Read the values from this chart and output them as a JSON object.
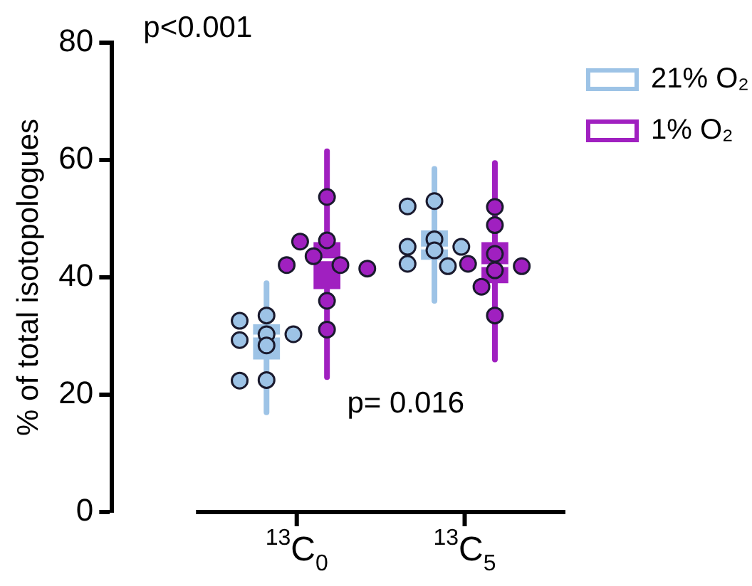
{
  "chart_data": {
    "type": "box",
    "ylabel": "% of total isotopologues",
    "categories": [
      "$^{13}$C$_{0}$",
      "$^{13}$C$_{5}$"
    ],
    "ylim": [
      0,
      80
    ],
    "yticks": [
      0,
      20,
      40,
      60,
      80
    ],
    "grid": false,
    "legend": "top right",
    "annotations": [
      "p<0.001",
      "p= 0.016"
    ],
    "series": [
      {
        "name": "21% O₂",
        "color": "#9dc3e6",
        "boxes": [
          {
            "low": 17,
            "q1": 26,
            "median": 30,
            "q3": 32,
            "high": 39
          },
          {
            "low": 36,
            "q1": 43,
            "median": 45,
            "q3": 48,
            "high": 58.5
          }
        ]
      },
      {
        "name": "1% O₂",
        "color": "#a020c0",
        "boxes": [
          {
            "low": 23,
            "q1": 38,
            "median": 43,
            "q3": 46,
            "high": 61.5
          },
          {
            "low": 26,
            "q1": 39,
            "median": 42,
            "q3": 46,
            "high": 59.5
          }
        ]
      },
      {
        "type": "scatter",
        "color": "#9dc3e6",
        "marker": "circle",
        "x": [
          "$^{13}$C$_{0}$",
          "$^{13}$C$_{0}$",
          "$^{13}$C$_{0}$",
          "$^{13}$C$_{0}$",
          "$^{13}$C$_{0}$",
          "$^{13}$C$_{0}$",
          "$^{13}$C$_{0}$",
          "$^{13}$C$_{0}$",
          "$^{13}$C$_{5}$",
          "$^{13}$C$_{5}$",
          "$^{13}$C$_{5}$",
          "$^{13}$C$_{5}$",
          "$^{13}$C$_{5}$",
          "$^{13}$C$_{5}$",
          "$^{13}$C$_{5}$",
          "$^{13}$C$_{5}$"
        ],
        "values": [
          33.5,
          32.6,
          30.3,
          30.3,
          29.3,
          28.4,
          22.5,
          22.4,
          53,
          52.1,
          46.5,
          45.2,
          45.2,
          44.6,
          42.3,
          41.9
        ]
      },
      {
        "type": "scatter",
        "color": "#a020c0",
        "marker": "circle",
        "x": [
          "$^{13}$C$_{0}$",
          "$^{13}$C$_{0}$",
          "$^{13}$C$_{0}$",
          "$^{13}$C$_{0}$",
          "$^{13}$C$_{0}$",
          "$^{13}$C$_{0}$",
          "$^{13}$C$_{0}$",
          "$^{13}$C$_{0}$",
          "$^{13}$C$_{0}$",
          "$^{13}$C$_{5}$",
          "$^{13}$C$_{5}$",
          "$^{13}$C$_{5}$",
          "$^{13}$C$_{5}$",
          "$^{13}$C$_{5}$",
          "$^{13}$C$_{5}$",
          "$^{13}$C$_{5}$",
          "$^{13}$C$_{5}$"
        ],
        "values": [
          53.7,
          46.3,
          46.1,
          43.6,
          42.1,
          42.1,
          41.5,
          36,
          31.1,
          52,
          48.9,
          44,
          42.3,
          41.9,
          41.2,
          38.4,
          33.5
        ]
      }
    ]
  }
}
